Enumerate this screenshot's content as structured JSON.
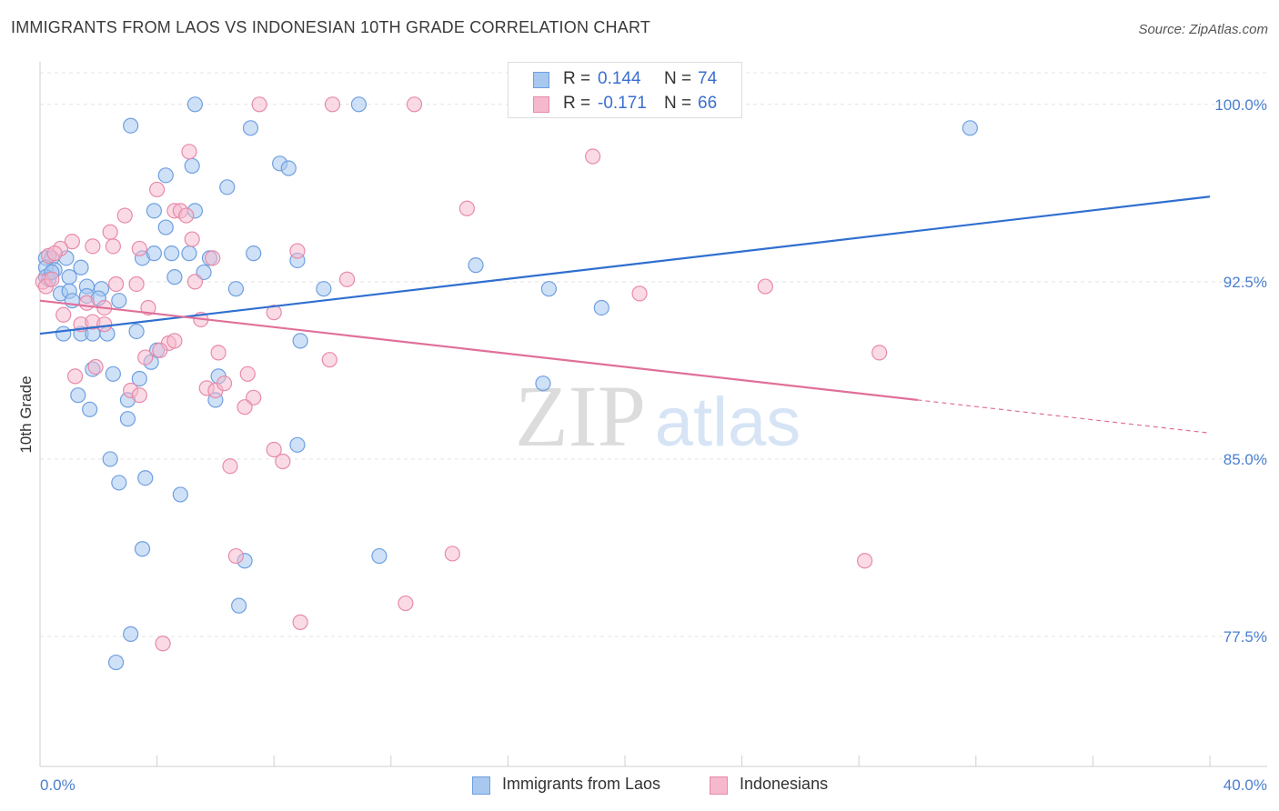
{
  "title": "IMMIGRANTS FROM LAOS VS INDONESIAN 10TH GRADE CORRELATION CHART",
  "source": "Source: ZipAtlas.com",
  "watermark": {
    "zip": "ZIP",
    "atlas": "atlas"
  },
  "stats": {
    "laos": {
      "r_label": "R =",
      "r_value": "0.144",
      "n_label": "N =",
      "n_value": "74"
    },
    "indonesians": {
      "r_label": "R =",
      "r_value": "-0.171",
      "n_label": "N =",
      "n_value": "66"
    }
  },
  "legend": {
    "laos": "Immigrants from Laos",
    "indonesians": "Indonesians"
  },
  "colors": {
    "laos_fill": "#a8c8f0",
    "laos_stroke": "#6f9fe0",
    "laos_line": "#2f6fd0",
    "indo_fill": "#f5b8cc",
    "indo_stroke": "#e88aaa",
    "indo_line": "#e0709a",
    "tick_label": "#4a7fd0"
  },
  "chart_data": {
    "type": "scatter",
    "title": "IMMIGRANTS FROM LAOS VS INDONESIAN 10TH GRADE CORRELATION CHART",
    "xlabel": "",
    "ylabel": "10th Grade",
    "xlim": [
      0,
      40
    ],
    "ylim": [
      72.0,
      101.8
    ],
    "x_tick_labels": [
      "0.0%",
      "40.0%"
    ],
    "y_ticks": [
      {
        "value": 100.0,
        "label": "100.0%"
      },
      {
        "value": 92.5,
        "label": "92.5%"
      },
      {
        "value": 85.0,
        "label": "85.0%"
      },
      {
        "value": 77.5,
        "label": "77.5%"
      }
    ],
    "grid": true,
    "legend_position": "bottom-center",
    "series": [
      {
        "name": "Immigrants from Laos",
        "trend": {
          "x": [
            0,
            40
          ],
          "y": [
            90.3,
            96.1
          ],
          "dashed_from_x": null
        },
        "points": [
          [
            5.3,
            100.0
          ],
          [
            10.9,
            100.0
          ],
          [
            3.1,
            99.1
          ],
          [
            7.2,
            99.0
          ],
          [
            31.8,
            99.0
          ],
          [
            8.2,
            97.5
          ],
          [
            8.5,
            97.3
          ],
          [
            5.2,
            97.4
          ],
          [
            4.3,
            97.0
          ],
          [
            6.4,
            96.5
          ],
          [
            3.9,
            95.5
          ],
          [
            5.3,
            95.5
          ],
          [
            4.3,
            94.8
          ],
          [
            0.2,
            93.5
          ],
          [
            0.4,
            93.5
          ],
          [
            0.9,
            93.5
          ],
          [
            3.5,
            93.5
          ],
          [
            3.9,
            93.7
          ],
          [
            4.5,
            93.7
          ],
          [
            5.1,
            93.7
          ],
          [
            7.3,
            93.7
          ],
          [
            5.8,
            93.5
          ],
          [
            8.8,
            93.4
          ],
          [
            14.9,
            93.2
          ],
          [
            0.2,
            93.1
          ],
          [
            0.5,
            93.0
          ],
          [
            1.4,
            93.1
          ],
          [
            5.6,
            92.9
          ],
          [
            0.2,
            92.7
          ],
          [
            0.3,
            92.6
          ],
          [
            1.0,
            92.7
          ],
          [
            4.6,
            92.7
          ],
          [
            1.6,
            92.3
          ],
          [
            2.1,
            92.2
          ],
          [
            6.7,
            92.2
          ],
          [
            9.7,
            92.2
          ],
          [
            17.4,
            92.2
          ],
          [
            0.7,
            92.0
          ],
          [
            1.0,
            92.1
          ],
          [
            1.6,
            91.9
          ],
          [
            2.0,
            91.8
          ],
          [
            1.1,
            91.7
          ],
          [
            2.7,
            91.7
          ],
          [
            19.2,
            91.4
          ],
          [
            3.3,
            90.4
          ],
          [
            0.8,
            90.3
          ],
          [
            1.4,
            90.3
          ],
          [
            1.8,
            90.3
          ],
          [
            2.3,
            90.3
          ],
          [
            8.9,
            90.0
          ],
          [
            4.0,
            89.6
          ],
          [
            3.8,
            89.1
          ],
          [
            1.8,
            88.8
          ],
          [
            2.5,
            88.6
          ],
          [
            3.4,
            88.4
          ],
          [
            6.1,
            88.5
          ],
          [
            17.2,
            88.2
          ],
          [
            1.3,
            87.7
          ],
          [
            3.0,
            87.5
          ],
          [
            6.0,
            87.5
          ],
          [
            1.7,
            87.1
          ],
          [
            3.0,
            86.7
          ],
          [
            8.8,
            85.6
          ],
          [
            2.4,
            85.0
          ],
          [
            2.7,
            84.0
          ],
          [
            3.6,
            84.2
          ],
          [
            4.8,
            83.5
          ],
          [
            3.5,
            81.2
          ],
          [
            7.0,
            80.7
          ],
          [
            11.6,
            80.9
          ],
          [
            6.8,
            78.8
          ],
          [
            3.1,
            77.6
          ],
          [
            2.6,
            76.4
          ],
          [
            0.4,
            92.9
          ]
        ]
      },
      {
        "name": "Indonesians",
        "trend": {
          "x": [
            0,
            40
          ],
          "y": [
            91.7,
            86.1
          ],
          "dashed_from_x": 30.0
        },
        "points": [
          [
            7.5,
            100.0
          ],
          [
            10.0,
            100.0
          ],
          [
            12.8,
            100.0
          ],
          [
            5.1,
            98.0
          ],
          [
            18.9,
            97.8
          ],
          [
            4.0,
            96.4
          ],
          [
            14.6,
            95.6
          ],
          [
            2.9,
            95.3
          ],
          [
            4.6,
            95.5
          ],
          [
            4.8,
            95.5
          ],
          [
            5.0,
            95.3
          ],
          [
            2.4,
            94.6
          ],
          [
            5.2,
            94.3
          ],
          [
            1.1,
            94.2
          ],
          [
            0.7,
            93.9
          ],
          [
            1.8,
            94.0
          ],
          [
            2.5,
            94.0
          ],
          [
            3.4,
            93.9
          ],
          [
            8.8,
            93.8
          ],
          [
            0.3,
            93.6
          ],
          [
            0.5,
            93.7
          ],
          [
            5.9,
            93.5
          ],
          [
            0.1,
            92.5
          ],
          [
            0.2,
            92.3
          ],
          [
            0.4,
            92.6
          ],
          [
            3.3,
            92.4
          ],
          [
            5.3,
            92.5
          ],
          [
            10.5,
            92.6
          ],
          [
            2.6,
            92.4
          ],
          [
            24.8,
            92.3
          ],
          [
            20.5,
            92.0
          ],
          [
            1.6,
            91.6
          ],
          [
            2.2,
            91.4
          ],
          [
            3.7,
            91.4
          ],
          [
            8.0,
            91.2
          ],
          [
            5.5,
            90.9
          ],
          [
            0.8,
            91.1
          ],
          [
            1.4,
            90.7
          ],
          [
            1.8,
            90.8
          ],
          [
            2.2,
            90.7
          ],
          [
            4.4,
            89.9
          ],
          [
            4.6,
            90.0
          ],
          [
            4.1,
            89.6
          ],
          [
            6.1,
            89.5
          ],
          [
            3.6,
            89.3
          ],
          [
            9.9,
            89.2
          ],
          [
            28.7,
            89.5
          ],
          [
            1.9,
            88.9
          ],
          [
            1.2,
            88.5
          ],
          [
            7.1,
            88.6
          ],
          [
            5.7,
            88.0
          ],
          [
            6.0,
            87.9
          ],
          [
            6.3,
            88.2
          ],
          [
            3.1,
            87.9
          ],
          [
            3.4,
            87.7
          ],
          [
            7.3,
            87.6
          ],
          [
            7.0,
            87.2
          ],
          [
            8.0,
            85.4
          ],
          [
            8.3,
            84.9
          ],
          [
            6.5,
            84.7
          ],
          [
            6.7,
            80.9
          ],
          [
            14.1,
            81.0
          ],
          [
            28.2,
            80.7
          ],
          [
            12.5,
            78.9
          ],
          [
            8.9,
            78.1
          ],
          [
            4.2,
            77.2
          ]
        ]
      }
    ]
  }
}
